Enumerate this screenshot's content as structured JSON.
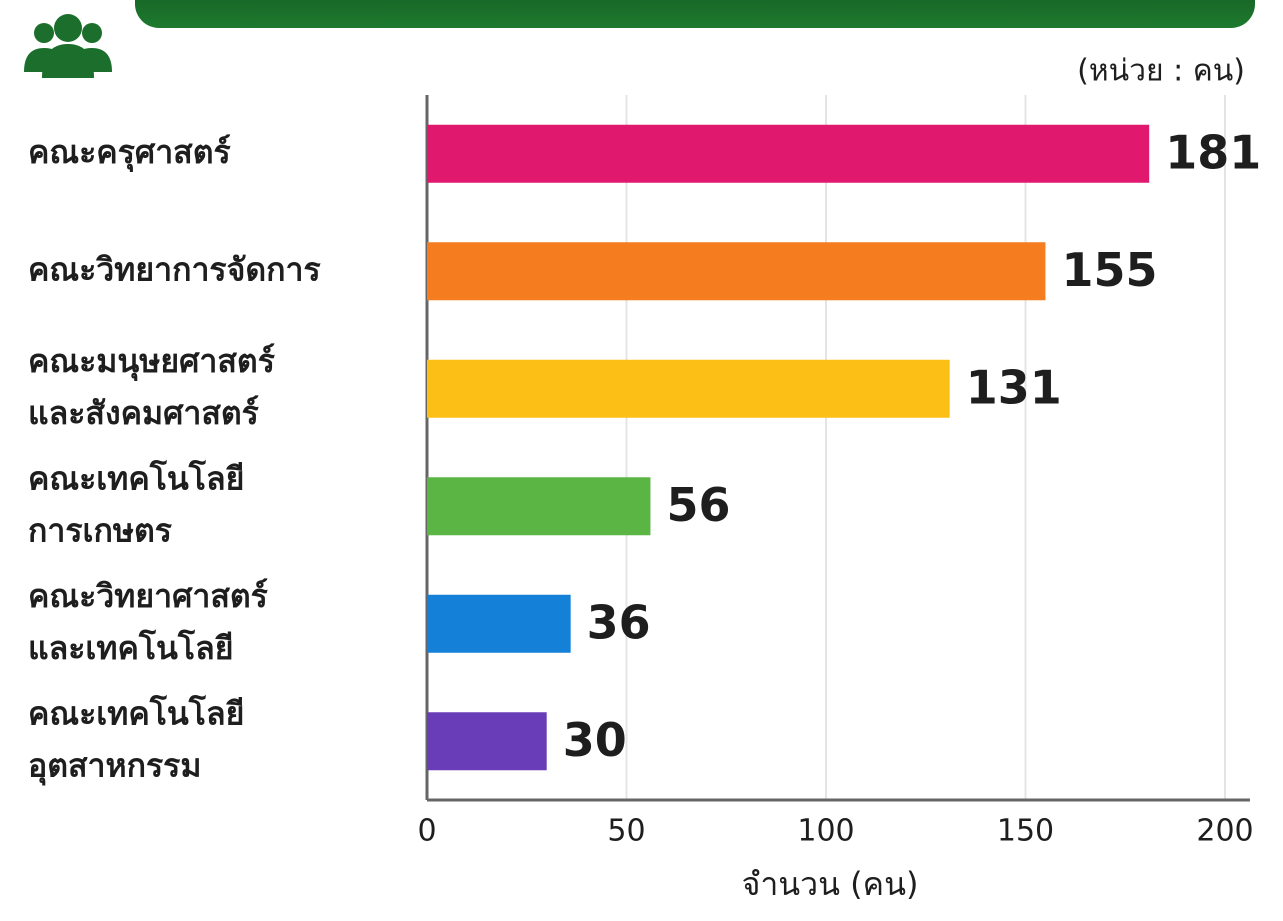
{
  "chart_data": {
    "type": "bar",
    "orientation": "horizontal",
    "unit_note": "(หน่วย : คน)",
    "xlabel": "จำนวน (คน)",
    "categories": [
      "คณะครุศาสตร์",
      "คณะวิทยาการจัดการ",
      "คณะมนุษยศาสตร์\nและสังคมศาสตร์",
      "คณะเทคโนโลยี\nการเกษตร",
      "คณะวิทยาศาสตร์\nและเทคโนโลยี",
      "คณะเทคโนโลยี\nอุตสาหกรรม"
    ],
    "values": [
      181,
      155,
      131,
      56,
      36,
      30
    ],
    "colors": [
      "#e0196e",
      "#f57c1f",
      "#fbbf16",
      "#5bb545",
      "#1580d8",
      "#6a3db8"
    ],
    "xlim": [
      0,
      200
    ],
    "xticks": [
      0,
      50,
      100,
      150,
      200
    ],
    "grid": true
  }
}
